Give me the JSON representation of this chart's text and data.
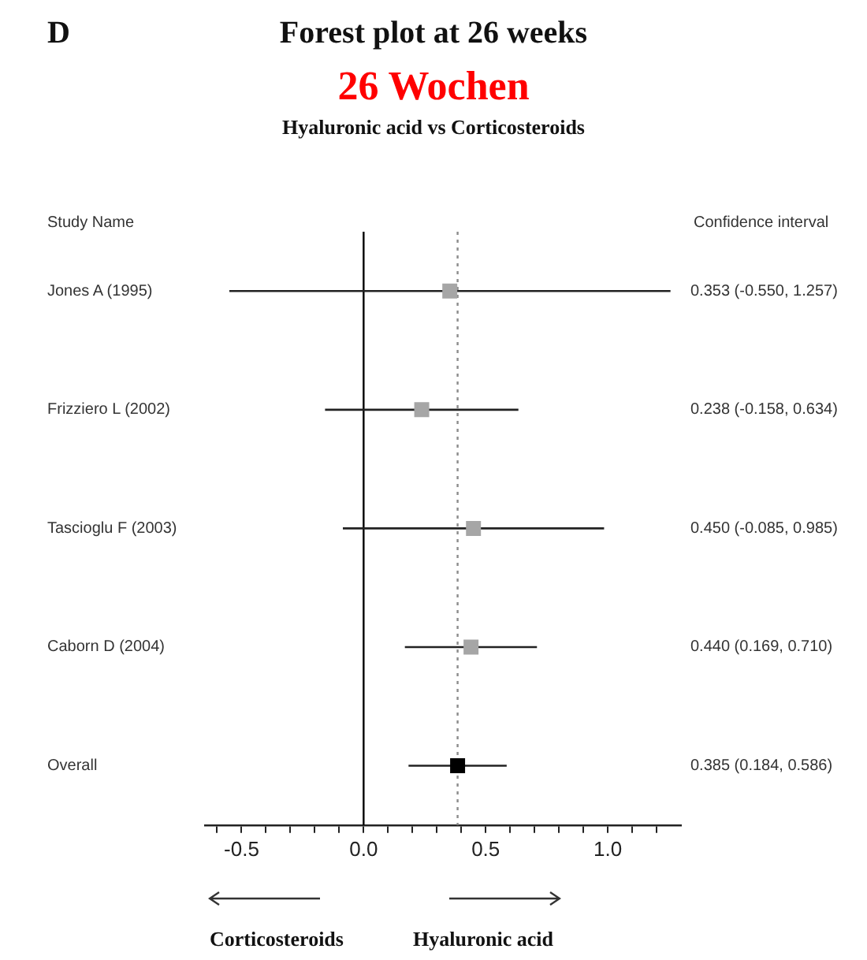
{
  "chart_data": {
    "type": "scatter",
    "orientation": "horizontal",
    "title": "Forest plot at 26 weeks",
    "subtitle": "Hyaluronic acid vs Corticosteroids",
    "annotations": [
      "D",
      "26 Wochen",
      "Study Name",
      "Confidence interval",
      "Corticosteroids",
      "Hyaluronic acid"
    ],
    "categories": [
      "Jones A (1995)",
      "Frizziero L (2002)",
      "Tascioglu F (2003)",
      "Caborn D (2004)",
      "Overall"
    ],
    "values": [
      0.353,
      0.238,
      0.45,
      0.44,
      0.385
    ],
    "errors": [
      [
        -0.55,
        1.257
      ],
      [
        -0.158,
        0.634
      ],
      [
        -0.085,
        0.985
      ],
      [
        0.169,
        0.71
      ],
      [
        0.184,
        0.586
      ]
    ],
    "value_labels": [
      "0.353 (-0.550, 1.257)",
      "0.238 (-0.158, 0.634)",
      "0.450 (-0.085, 0.985)",
      "0.440 (0.169, 0.710)",
      "0.385 (0.184, 0.586)"
    ],
    "colors": [
      "#a6a6a6",
      "#a6a6a6",
      "#a6a6a6",
      "#a6a6a6",
      "#000000"
    ],
    "marker": "square",
    "xlim": [
      -0.65,
      1.3
    ],
    "xticks": [
      {
        "value": -0.6,
        "label": null
      },
      {
        "value": -0.5,
        "label": "-0.5"
      },
      {
        "value": -0.4,
        "label": null
      },
      {
        "value": -0.3,
        "label": null
      },
      {
        "value": -0.2,
        "label": null
      },
      {
        "value": -0.1,
        "label": null
      },
      {
        "value": 0,
        "label": "0.0"
      },
      {
        "value": 0.1,
        "label": null
      },
      {
        "value": 0.2,
        "label": null
      },
      {
        "value": 0.3,
        "label": null
      },
      {
        "value": 0.4,
        "label": null
      },
      {
        "value": 0.5,
        "label": "0.5"
      },
      {
        "value": 0.6,
        "label": null
      },
      {
        "value": 0.7,
        "label": null
      },
      {
        "value": 0.8,
        "label": null
      },
      {
        "value": 0.9,
        "label": null
      },
      {
        "value": 1,
        "label": "1.0"
      },
      {
        "value": 1.1,
        "label": null
      },
      {
        "value": 1.2,
        "label": null
      }
    ],
    "ref_lines": [
      {
        "axis": "x",
        "value": 0,
        "color": "#000000",
        "line_style": "solid"
      },
      {
        "axis": "x",
        "value": 0.385,
        "color": "#8c8c8c",
        "line_style": "dotted"
      }
    ],
    "grid": false,
    "legend": false
  }
}
